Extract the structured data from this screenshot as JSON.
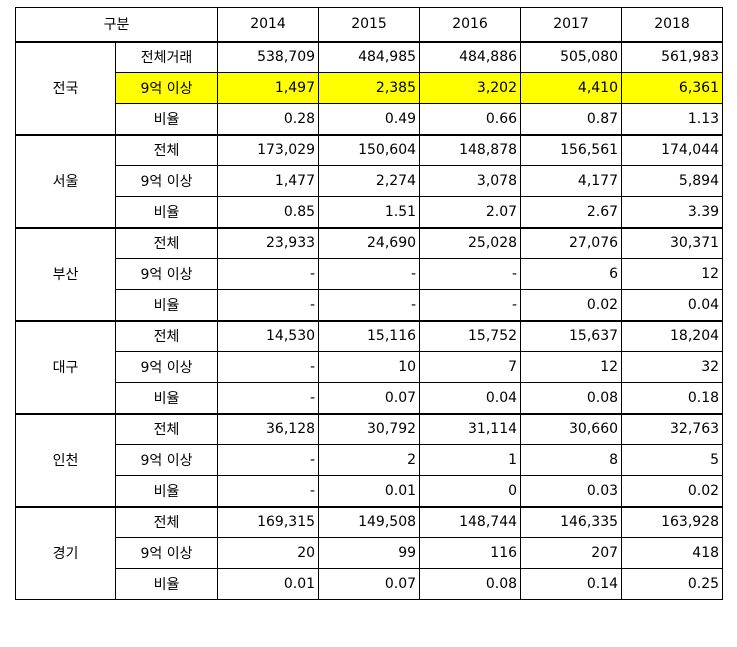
{
  "header": {
    "category_label": "구분",
    "years": [
      "2014",
      "2015",
      "2016",
      "2017",
      "2018"
    ]
  },
  "groups": [
    {
      "region": "전국",
      "rows": [
        {
          "label": "전체거래",
          "values": [
            "538,709",
            "484,985",
            "484,886",
            "505,080",
            "561,983"
          ],
          "highlight": false
        },
        {
          "label": "9억 이상",
          "values": [
            "1,497",
            "2,385",
            "3,202",
            "4,410",
            "6,361"
          ],
          "highlight": true
        },
        {
          "label": "비율",
          "values": [
            "0.28",
            "0.49",
            "0.66",
            "0.87",
            "1.13"
          ],
          "highlight": false
        }
      ]
    },
    {
      "region": "서울",
      "rows": [
        {
          "label": "전체",
          "values": [
            "173,029",
            "150,604",
            "148,878",
            "156,561",
            "174,044"
          ],
          "highlight": false
        },
        {
          "label": "9억 이상",
          "values": [
            "1,477",
            "2,274",
            "3,078",
            "4,177",
            "5,894"
          ],
          "highlight": false
        },
        {
          "label": "비율",
          "values": [
            "0.85",
            "1.51",
            "2.07",
            "2.67",
            "3.39"
          ],
          "highlight": false
        }
      ]
    },
    {
      "region": "부산",
      "rows": [
        {
          "label": "전체",
          "values": [
            "23,933",
            "24,690",
            "25,028",
            "27,076",
            "30,371"
          ],
          "highlight": false
        },
        {
          "label": "9억 이상",
          "values": [
            "-",
            "-",
            "-",
            "6",
            "12"
          ],
          "highlight": false
        },
        {
          "label": "비율",
          "values": [
            "-",
            "-",
            "-",
            "0.02",
            "0.04"
          ],
          "highlight": false
        }
      ]
    },
    {
      "region": "대구",
      "rows": [
        {
          "label": "전체",
          "values": [
            "14,530",
            "15,116",
            "15,752",
            "15,637",
            "18,204"
          ],
          "highlight": false
        },
        {
          "label": "9억 이상",
          "values": [
            "-",
            "10",
            "7",
            "12",
            "32"
          ],
          "highlight": false
        },
        {
          "label": "비율",
          "values": [
            "-",
            "0.07",
            "0.04",
            "0.08",
            "0.18"
          ],
          "highlight": false
        }
      ]
    },
    {
      "region": "인천",
      "rows": [
        {
          "label": "전체",
          "values": [
            "36,128",
            "30,792",
            "31,114",
            "30,660",
            "32,763"
          ],
          "highlight": false
        },
        {
          "label": "9억 이상",
          "values": [
            "-",
            "2",
            "1",
            "8",
            "5"
          ],
          "highlight": false
        },
        {
          "label": "비율",
          "values": [
            "-",
            "0.01",
            "0",
            "0.03",
            "0.02"
          ],
          "highlight": false
        }
      ]
    },
    {
      "region": "경기",
      "rows": [
        {
          "label": "전체",
          "values": [
            "169,315",
            "149,508",
            "148,744",
            "146,335",
            "163,928"
          ],
          "highlight": false
        },
        {
          "label": "9억 이상",
          "values": [
            "20",
            "99",
            "116",
            "207",
            "418"
          ],
          "highlight": false
        },
        {
          "label": "비율",
          "values": [
            "0.01",
            "0.07",
            "0.08",
            "0.14",
            "0.25"
          ],
          "highlight": false
        }
      ]
    }
  ]
}
